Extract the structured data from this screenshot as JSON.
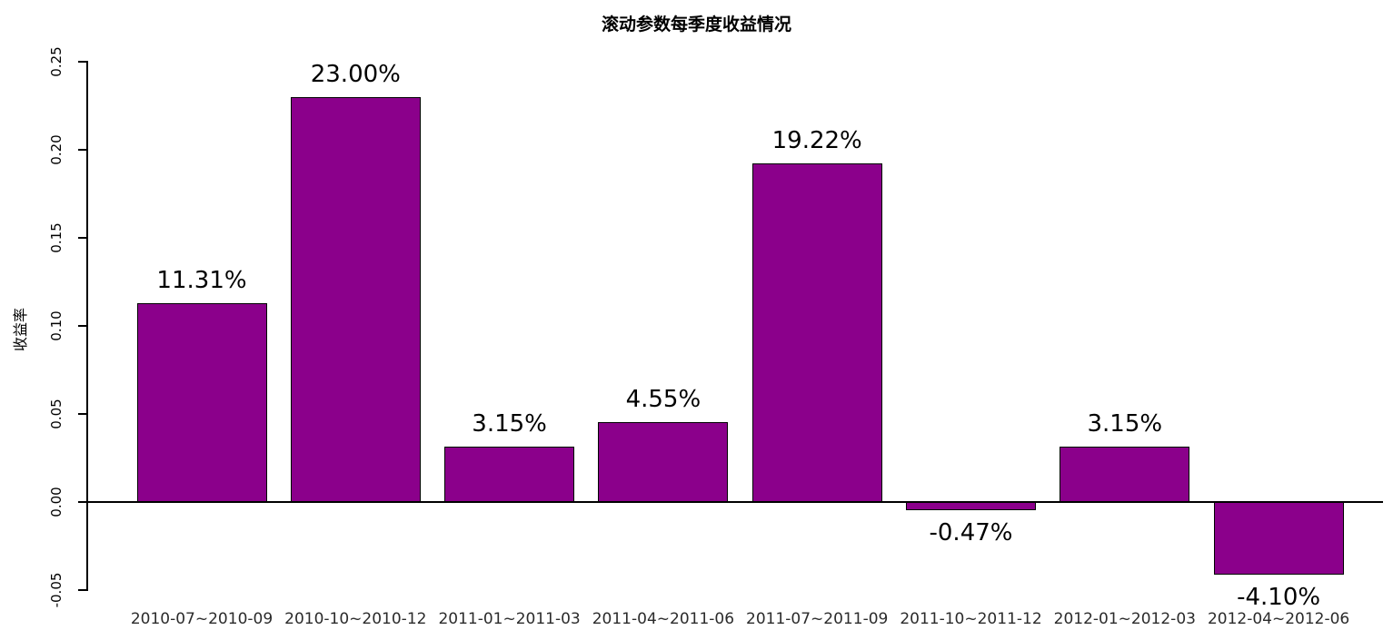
{
  "chart_data": {
    "type": "bar",
    "title": "滚动参数每季度收益情况",
    "xlabel": "",
    "ylabel": "收益率",
    "categories": [
      "2010-07~2010-09",
      "2010-10~2010-12",
      "2011-01~2011-03",
      "2011-04~2011-06",
      "2011-07~2011-09",
      "2011-10~2011-12",
      "2012-01~2012-03",
      "2012-04~2012-06"
    ],
    "values": [
      0.1131,
      0.23,
      0.0315,
      0.0455,
      0.1922,
      -0.0047,
      0.0315,
      -0.041
    ],
    "bar_labels": [
      "11.31%",
      "23.00%",
      "3.15%",
      "4.55%",
      "19.22%",
      "-0.47%",
      "3.15%",
      "-4.10%"
    ],
    "y_ticks": [
      "-0.05",
      "0.00",
      "0.05",
      "0.10",
      "0.15",
      "0.20",
      "0.25"
    ],
    "y_tick_values": [
      -0.05,
      0.0,
      0.05,
      0.1,
      0.15,
      0.2,
      0.25
    ],
    "ylim": [
      -0.05,
      0.25
    ],
    "bar_color": "#8B008B",
    "bar_border_color": "#000000",
    "grid": false,
    "legend": "none"
  }
}
